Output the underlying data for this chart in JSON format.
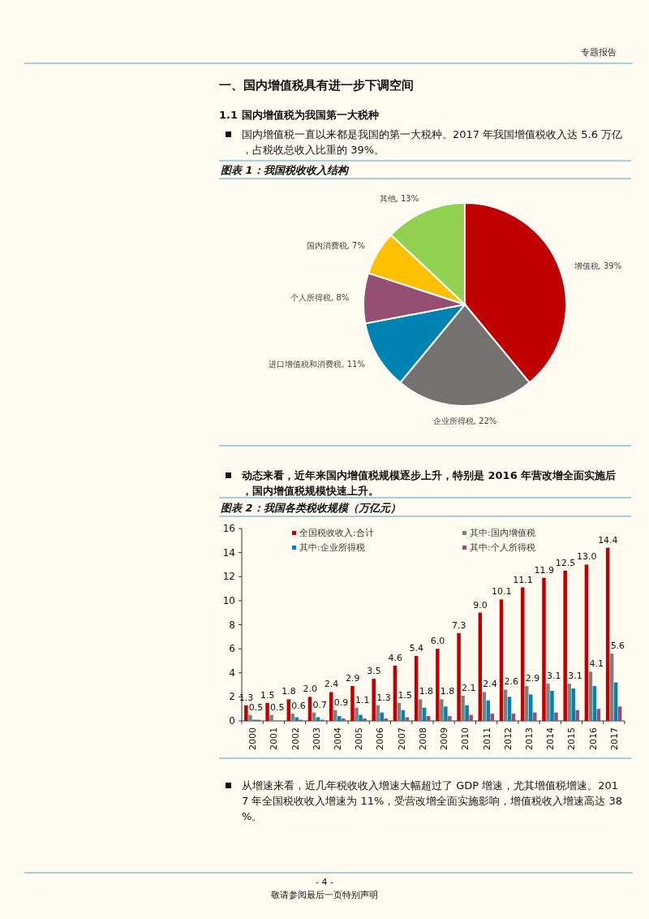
{
  "chart_data": [
    {
      "type": "pie",
      "title": "图表 1：我国税收收入结构",
      "categories": [
        "增值税",
        "企业所得税",
        "进口增值税和消费税",
        "个人所得税",
        "国内消费税",
        "其他"
      ],
      "values": [
        39,
        22,
        11,
        8,
        7,
        13
      ],
      "colors": [
        "#c00000",
        "#767171",
        "#0083b3",
        "#954f72",
        "#ffc000",
        "#92d050"
      ],
      "value_labels": [
        ", 39%",
        ", 22%",
        ", 11%",
        ", 8%",
        ", 7%",
        ", 13%"
      ],
      "annotations": [
        "专题报告",
        "一、国内增值税具有进一步下调空间",
        "1.1 国内增值税为我国第一大税种",
        "国内增值税一直以来都是我国的第一大税种。2017 年我国增值税收入达 5.6 万亿，占税收总收入比重的 39%。"
      ]
    },
    {
      "type": "bar",
      "title": "图表 2：我国各类税收规模（万亿元）",
      "categories": [
        "2000",
        "2001",
        "2002",
        "2003",
        "2004",
        "2005",
        "2006",
        "2007",
        "2008",
        "2009",
        "2010",
        "2011",
        "2012",
        "2013",
        "2014",
        "2015",
        "2016",
        "2017"
      ],
      "series": [
        {
          "name": "全国税收收入:合计",
          "color": "#c00000",
          "values": [
            1.3,
            1.5,
            1.8,
            2.0,
            2.4,
            2.9,
            3.5,
            4.6,
            5.4,
            6.0,
            7.3,
            9.0,
            10.1,
            11.1,
            11.9,
            12.5,
            13.0,
            14.4
          ],
          "value_labels": [
            "1.3",
            "1.5",
            "1.8",
            "2.0",
            "2.4",
            "2.9",
            "3.5",
            "4.6",
            "5.4",
            "6.0",
            "7.3",
            "9.0",
            "10.1",
            "11.1",
            "11.9",
            "12.5",
            "13.0",
            "14.4"
          ]
        },
        {
          "name": "其中:国内增值税",
          "color": "#7f7f7f",
          "values": [
            0.5,
            0.5,
            0.6,
            0.7,
            0.9,
            1.1,
            1.3,
            1.5,
            1.8,
            1.8,
            2.1,
            2.4,
            2.6,
            2.9,
            3.1,
            3.1,
            4.1,
            5.6
          ],
          "value_labels": [
            "0.5",
            "0.5",
            "0.6",
            "0.7",
            "0.9",
            "1.1",
            "1.3",
            "1.5",
            "1.8",
            "1.8",
            "2.1",
            "2.4",
            "2.6",
            "2.9",
            "3.1",
            "3.1",
            "4.1",
            "5.6"
          ]
        },
        {
          "name": "其中:企业所得税",
          "color": "#0083b3",
          "values": [
            0.1,
            null,
            0.3,
            0.3,
            0.4,
            0.5,
            0.7,
            0.9,
            1.1,
            1.2,
            1.3,
            1.7,
            2.0,
            2.2,
            2.5,
            2.7,
            2.9,
            3.2
          ]
        },
        {
          "name": "其中:个人所得税",
          "color": "#954f72",
          "values": [
            0.1,
            null,
            0.1,
            0.1,
            0.2,
            0.2,
            0.2,
            0.3,
            0.4,
            0.4,
            0.5,
            0.6,
            0.6,
            0.7,
            0.7,
            0.9,
            1.0,
            1.2
          ]
        }
      ],
      "ylim": [
        0,
        16
      ],
      "yticks": [
        0,
        2,
        4,
        6,
        8,
        10,
        12,
        14,
        16
      ],
      "grid": false,
      "legend": "top",
      "annotations": [
        "动态来看，近年来国内增值税规模逐步上升，特别是 2016 年营改增全面实施后，国内增值税规模快速上升。",
        "从增速来看，近几年税收收入增速大幅超过了 GDP 增速，尤其增值税增速。2017 年全国税收收入增速为 11%，受营改增全面实施影响，增值税收入增速高达 38%。",
        "- 4 -",
        "敬请参阅最后一页特别声明"
      ]
    }
  ]
}
